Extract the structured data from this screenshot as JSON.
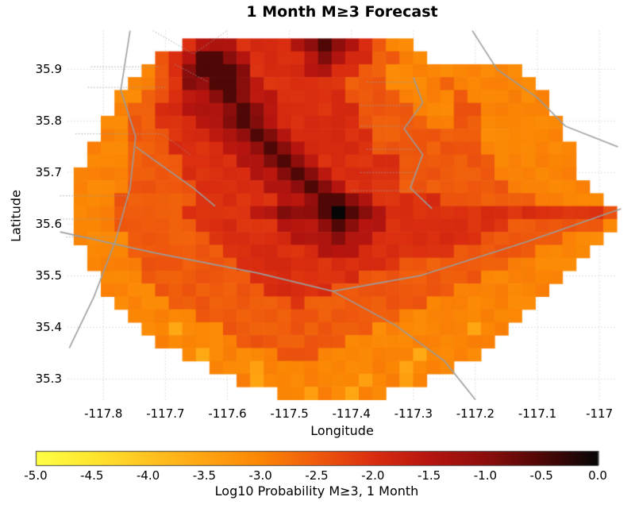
{
  "chart_data": {
    "type": "heatmap",
    "title": "1 Month M≥3 Forecast",
    "xlabel": "Longitude",
    "ylabel": "Latitude",
    "xlim": [
      -117.858,
      -116.972
    ],
    "ylim": [
      35.256,
      35.976
    ],
    "x_ticks": {
      "values": [
        -117.8,
        -117.7,
        -117.6,
        -117.5,
        -117.4,
        -117.3,
        -117.2,
        -117.1,
        -117
      ],
      "labels": [
        "-117.8",
        "-117.7",
        "-117.6",
        "-117.5",
        "-117.4",
        "-117.3",
        "-117.2",
        "-117.1",
        "-117"
      ]
    },
    "y_ticks": {
      "values": [
        35.3,
        35.4,
        35.5,
        35.6,
        35.7,
        35.8,
        35.9
      ],
      "labels": [
        "35.3",
        "35.4",
        "35.5",
        "35.6",
        "35.7",
        "35.8",
        "35.9"
      ]
    },
    "gridlines": {
      "show": true,
      "color": "#d0d0d0",
      "dotted": true
    },
    "grid": {
      "comment": "Log10 probability field. Each row = 10 groups of 4 cells (40 columns), top row = north. '.' = no data; digit d => value = -5 + 0.5*d; 'a' => value = 0.0 (black epicenter cell).",
      "lon_start": -117.848,
      "dlon": 0.0219,
      "ncols": 40,
      "lat_start": 35.96,
      "dlat": 0.025,
      "nrows": 28,
      "rows": [
        [
          "....",
          "....",
          "6777",
          "6666",
          "7898",
          "7654",
          "4...",
          "....",
          "....",
          "...."
        ],
        [
          "....",
          "..56",
          "7998",
          "7666",
          "6787",
          "6655",
          "44..",
          "....",
          "....",
          "...."
        ],
        [
          "....",
          ".456",
          "8999",
          "8666",
          "6776",
          "6554",
          "4444",
          "4444",
          "4...",
          "...."
        ],
        [
          "....",
          "4456",
          "8899",
          "8766",
          "6666",
          "5554",
          "4445",
          "4444",
          "44..",
          "...."
        ],
        [
          "...4",
          "4556",
          "7789",
          "8776",
          "6666",
          "5555",
          "4444",
          "5444",
          "444.",
          "...."
        ],
        [
          "...4",
          "5566",
          "7778",
          "9876",
          "6666",
          "6555",
          "5444",
          "5544",
          "444.",
          "...."
        ],
        [
          "..44",
          "5566",
          "6778",
          "9876",
          "6666",
          "6555",
          "5544",
          "5544",
          "4444",
          "...."
        ],
        [
          "..44",
          "5556",
          "6677",
          "8987",
          "6666",
          "6655",
          "5555",
          "5544",
          "4444",
          "...."
        ],
        [
          ".444",
          "5556",
          "6667",
          "7898",
          "7666",
          "6655",
          "5555",
          "5544",
          "4444",
          "4..."
        ],
        [
          ".444",
          "5555",
          "6666",
          "7789",
          "8766",
          "6666",
          "5555",
          "5554",
          "4444",
          "4..."
        ],
        [
          "4444",
          "5555",
          "6666",
          "6778",
          "9876",
          "6666",
          "5555",
          "5554",
          "4444",
          "4..."
        ],
        [
          "4444",
          "5555",
          "5666",
          "6677",
          "8987",
          "6666",
          "5555",
          "5555",
          "4444",
          "44.."
        ],
        [
          "4445",
          "5555",
          "5666",
          "6667",
          "7899",
          "8766",
          "6665",
          "5555",
          "5544",
          "444."
        ],
        [
          "4445",
          "5555",
          "6666",
          "6778",
          "889a",
          "9876",
          "6666",
          "6666",
          "6666",
          "6665"
        ],
        [
          "4445",
          "5555",
          "5666",
          "6667",
          "7789",
          "8776",
          "6666",
          "6666",
          "5555",
          "5554"
        ],
        [
          "4444",
          "5555",
          "5566",
          "6666",
          "7778",
          "7766",
          "6666",
          "6655",
          "5555",
          "444."
        ],
        [
          ".444",
          "5555",
          "5556",
          "6666",
          "6677",
          "7666",
          "6666",
          "5555",
          "5544",
          "44.."
        ],
        [
          ".444",
          "4555",
          "5555",
          "6666",
          "6666",
          "6666",
          "5555",
          "5555",
          "4444",
          "4..."
        ],
        [
          "..44",
          "4555",
          "5555",
          "5666",
          "6666",
          "6555",
          "5555",
          "5544",
          "4444",
          "...."
        ],
        [
          "..44",
          "4455",
          "5555",
          "5566",
          "6665",
          "5555",
          "5555",
          "4444",
          "444.",
          "...."
        ],
        [
          "...4",
          "4445",
          "5555",
          "5555",
          "6555",
          "5555",
          "5544",
          "4444",
          "44..",
          "...."
        ],
        [
          "....",
          "4444",
          "4555",
          "5555",
          "5555",
          "5555",
          "4444",
          "4444",
          "4...",
          "...."
        ],
        [
          "....",
          ".443",
          "4445",
          "5555",
          "5555",
          "5544",
          "4444",
          "4344",
          "....",
          "...."
        ],
        [
          "....",
          "..44",
          "4444",
          "5555",
          "5555",
          "4444",
          "4444",
          "444.",
          "....",
          "...."
        ],
        [
          "....",
          "....",
          "4344",
          "4445",
          "5544",
          "4444",
          "4344",
          "44..",
          "....",
          "...."
        ],
        [
          "....",
          "....",
          "..44",
          "4344",
          "4444",
          "4444",
          "3444",
          "....",
          "....",
          "...."
        ],
        [
          "....",
          "....",
          "....",
          "4344",
          "4444",
          "4344",
          "34..",
          "....",
          "....",
          "...."
        ],
        [
          "....",
          "....",
          "....",
          "...4",
          "4344",
          "344.",
          "....",
          "....",
          "....",
          "...."
        ]
      ]
    },
    "colormap": {
      "stops": [
        [
          -5.0,
          "#FFFF45"
        ],
        [
          -4.5,
          "#FFE62E"
        ],
        [
          -4.0,
          "#FFC31F"
        ],
        [
          -3.5,
          "#FFA412"
        ],
        [
          -3.0,
          "#FB8604"
        ],
        [
          -2.5,
          "#EF5A0D"
        ],
        [
          -2.0,
          "#DA2D10"
        ],
        [
          -1.5,
          "#B6150F"
        ],
        [
          -1.0,
          "#8C0E0C"
        ],
        [
          -0.5,
          "#4F0806"
        ],
        [
          0.0,
          "#060606"
        ]
      ]
    },
    "colorbar": {
      "min": -5,
      "max": 0,
      "tick_values": [
        -5,
        -4.5,
        -4,
        -3.5,
        -3,
        -2.5,
        -2,
        -1.5,
        -1,
        -0.5,
        0
      ],
      "tick_labels": [
        "-5.0",
        "-4.5",
        "-4.0",
        "-3.5",
        "-3.0",
        "-2.5",
        "-2.0",
        "-1.5",
        "-1.0",
        "-0.5",
        "0.0"
      ],
      "label": "Log10 Probability M≥3, 1 Month",
      "border_color": "#444444"
    },
    "fault_lines": {
      "color": "#9c9c9c",
      "solid": [
        [
          [
            -117.757,
            35.975
          ],
          [
            -117.772,
            35.86
          ],
          [
            -117.748,
            35.77
          ],
          [
            -117.757,
            35.67
          ],
          [
            -117.78,
            35.57
          ],
          [
            -117.815,
            35.46
          ],
          [
            -117.855,
            35.36
          ]
        ],
        [
          [
            -117.748,
            35.75
          ],
          [
            -117.69,
            35.7
          ],
          [
            -117.655,
            35.67
          ],
          [
            -117.62,
            35.635
          ]
        ],
        [
          [
            -117.87,
            35.585
          ],
          [
            -117.72,
            35.545
          ],
          [
            -117.55,
            35.505
          ],
          [
            -117.43,
            35.47
          ],
          [
            -117.29,
            35.5
          ],
          [
            -117.12,
            35.565
          ],
          [
            -116.965,
            35.63
          ]
        ],
        [
          [
            -117.43,
            35.47
          ],
          [
            -117.33,
            35.405
          ],
          [
            -117.25,
            35.335
          ],
          [
            -117.2,
            35.26
          ]
        ],
        [
          [
            -117.205,
            35.975
          ],
          [
            -117.165,
            35.9
          ],
          [
            -117.1,
            35.845
          ],
          [
            -117.055,
            35.79
          ],
          [
            -116.97,
            35.75
          ]
        ],
        [
          [
            -117.3,
            35.885
          ],
          [
            -117.285,
            35.835
          ],
          [
            -117.315,
            35.785
          ],
          [
            -117.285,
            35.735
          ],
          [
            -117.305,
            35.67
          ],
          [
            -117.27,
            35.63
          ]
        ]
      ],
      "dotted": [
        [
          [
            -117.82,
            35.905
          ],
          [
            -117.71,
            35.905
          ]
        ],
        [
          [
            -117.825,
            35.865
          ],
          [
            -117.7,
            35.865
          ]
        ],
        [
          [
            -117.845,
            35.775
          ],
          [
            -117.705,
            35.775
          ],
          [
            -117.66,
            35.735
          ]
        ],
        [
          [
            -117.72,
            35.975
          ],
          [
            -117.655,
            35.93
          ],
          [
            -117.6,
            35.975
          ]
        ],
        [
          [
            -117.685,
            35.91
          ],
          [
            -117.63,
            35.875
          ]
        ],
        [
          [
            -117.87,
            35.655
          ],
          [
            -117.755,
            35.655
          ]
        ],
        [
          [
            -117.87,
            35.61
          ],
          [
            -117.77,
            35.61
          ]
        ],
        [
          [
            -117.86,
            35.575
          ],
          [
            -117.78,
            35.575
          ]
        ],
        [
          [
            -117.375,
            35.875
          ],
          [
            -117.295,
            35.875
          ]
        ],
        [
          [
            -117.385,
            35.83
          ],
          [
            -117.295,
            35.83
          ]
        ],
        [
          [
            -117.385,
            35.79
          ],
          [
            -117.3,
            35.79
          ]
        ],
        [
          [
            -117.375,
            35.745
          ],
          [
            -117.295,
            35.745
          ]
        ],
        [
          [
            -117.385,
            35.7
          ],
          [
            -117.295,
            35.7
          ]
        ],
        [
          [
            -117.4,
            35.665
          ],
          [
            -117.285,
            35.665
          ]
        ]
      ]
    }
  }
}
